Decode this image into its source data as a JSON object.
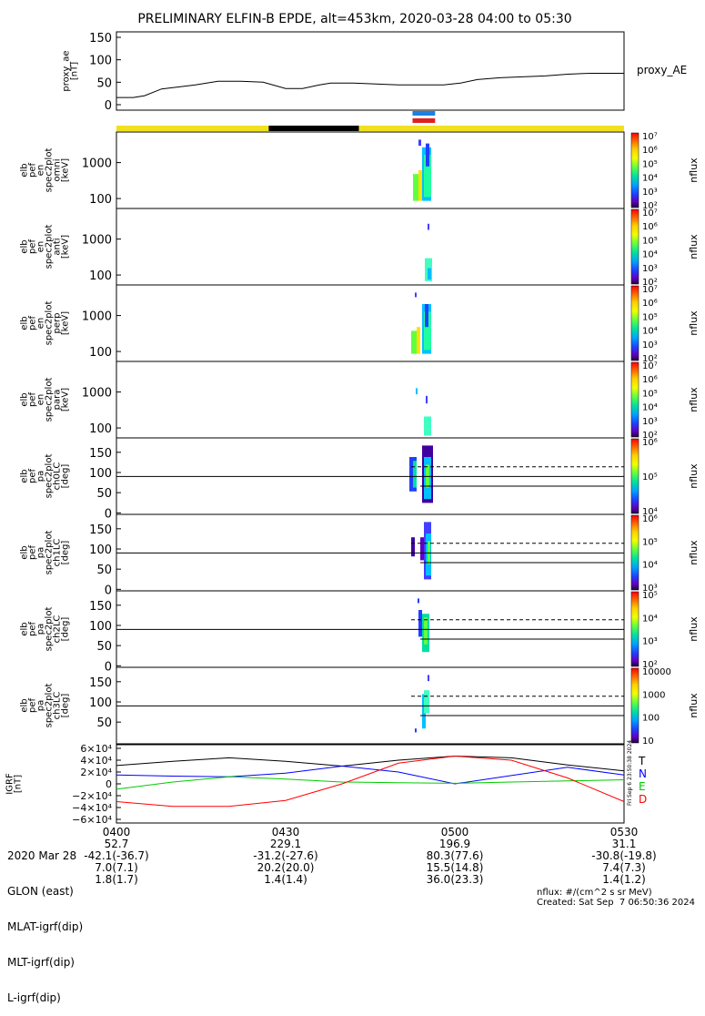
{
  "title": "PRELIMINARY ELFIN-B EPDE, alt=453km, 2020-03-28 04:00 to 05:30",
  "proxy_panel": {
    "ylabel_lines": [
      "proxy_ae",
      "[nT]"
    ],
    "yticks": [
      "0",
      "50",
      "100",
      "150"
    ],
    "legend": "proxy_AE"
  },
  "spectro_panels": [
    {
      "ylabel_lines": [
        "elb",
        "pef",
        "en",
        "spec2plot",
        "omni",
        "[keV]"
      ],
      "yticks": [
        "100",
        "1000"
      ],
      "cbar_label": "nflux",
      "cbar_ticks": [
        "10²",
        "10³",
        "10⁴",
        "10⁵",
        "10⁶",
        "10⁷"
      ]
    },
    {
      "ylabel_lines": [
        "elb",
        "pef",
        "en",
        "spec2plot",
        "anti",
        "[keV]"
      ],
      "yticks": [
        "100",
        "1000"
      ],
      "cbar_label": "nflux",
      "cbar_ticks": [
        "10²",
        "10³",
        "10⁴",
        "10⁵",
        "10⁶",
        "10⁷"
      ]
    },
    {
      "ylabel_lines": [
        "elb",
        "pef",
        "en",
        "spec2plot",
        "perp",
        "[keV]"
      ],
      "yticks": [
        "100",
        "1000"
      ],
      "cbar_label": "nflux",
      "cbar_ticks": [
        "10²",
        "10³",
        "10⁴",
        "10⁵",
        "10⁶",
        "10⁷"
      ]
    },
    {
      "ylabel_lines": [
        "elb",
        "pef",
        "en",
        "spec2plot",
        "para",
        "[keV]"
      ],
      "yticks": [
        "100",
        "1000"
      ],
      "cbar_label": "nflux",
      "cbar_ticks": [
        "10²",
        "10³",
        "10⁴",
        "10⁵",
        "10⁶",
        "10⁷"
      ]
    },
    {
      "ylabel_lines": [
        "elb",
        "pef",
        "pa",
        "spec2plot",
        "ch0LC",
        "[deg]"
      ],
      "yticks": [
        "0",
        "50",
        "100",
        "150"
      ],
      "cbar_label": "nflux",
      "cbar_ticks": [
        "10⁴",
        "10⁵",
        "10⁶"
      ]
    },
    {
      "ylabel_lines": [
        "elb",
        "pef",
        "pa",
        "spec2plot",
        "ch1LC",
        "[deg]"
      ],
      "yticks": [
        "0",
        "50",
        "100",
        "150"
      ],
      "cbar_label": "nflux",
      "cbar_ticks": [
        "10³",
        "10⁴",
        "10⁵",
        "10⁶"
      ]
    },
    {
      "ylabel_lines": [
        "elb",
        "pef",
        "pa",
        "spec2plot",
        "ch2LC",
        "[deg]"
      ],
      "yticks": [
        "0",
        "50",
        "100",
        "150"
      ],
      "cbar_label": "nflux",
      "cbar_ticks": [
        "10²",
        "10³",
        "10⁴",
        "10⁵"
      ]
    },
    {
      "ylabel_lines": [
        "elb",
        "pef",
        "pa",
        "spec2plot",
        "ch3LC",
        "[deg]"
      ],
      "yticks": [
        "50",
        "100",
        "150"
      ],
      "cbar_label": "nflux",
      "cbar_ticks": [
        "10",
        "100",
        "1000",
        "10000"
      ]
    }
  ],
  "igrf_panel": {
    "ylabel_lines": [
      "IGRF",
      "[nT]"
    ],
    "yticks": [
      "−6×10⁴",
      "−4×10⁴",
      "−2×10⁴",
      "0",
      "2×10⁴",
      "4×10⁴",
      "6×10⁴"
    ],
    "legend": [
      "T",
      "N",
      "E",
      "D"
    ],
    "legend_colors": [
      "#000000",
      "#0000ff",
      "#00cc00",
      "#ff0000"
    ]
  },
  "side_stamp": "Fri Sep  6 23:50:38 2024",
  "footer": {
    "row_labels": [
      "2020 Mar 28",
      "GLON (east)",
      "MLAT-igrf(dip)",
      "MLT-igrf(dip)",
      "L-igrf(dip)"
    ],
    "columns": [
      {
        "values": [
          "0400",
          "52.7",
          "-42.1(-36.7)",
          "7.0(7.1)",
          "1.8(1.7)"
        ]
      },
      {
        "values": [
          "0430",
          "229.1",
          "-31.2(-27.6)",
          "20.2(20.0)",
          "1.4(1.4)"
        ]
      },
      {
        "values": [
          "0500",
          "196.9",
          "80.3(77.6)",
          "15.5(14.8)",
          "36.0(23.3)"
        ]
      },
      {
        "values": [
          "0530",
          "31.1",
          "-30.8(-19.8)",
          "7.4(7.3)",
          "1.4(1.2)"
        ]
      }
    ],
    "units_note": "nflux: #/(cm^2 s sr MeV)",
    "created": "Created: Sat Sep  7 06:50:36 2024"
  },
  "chart_data": {
    "type": "line",
    "x_range_minutes_after_0400": [
      0,
      90
    ],
    "proxy_ae": {
      "x": [
        0,
        3,
        5,
        8,
        10,
        14,
        18,
        22,
        26,
        30,
        33,
        36,
        38,
        42,
        46,
        50,
        54,
        58,
        61,
        64,
        68,
        72,
        76,
        80,
        84,
        88,
        90
      ],
      "y": [
        16,
        16,
        20,
        35,
        38,
        44,
        52,
        52,
        50,
        36,
        36,
        44,
        48,
        48,
        46,
        44,
        44,
        44,
        48,
        56,
        60,
        62,
        64,
        68,
        70,
        70,
        70
      ],
      "ylim": [
        0,
        150
      ]
    },
    "igrf": {
      "x": [
        0,
        10,
        20,
        30,
        40,
        50,
        60,
        70,
        80,
        90
      ],
      "series": [
        {
          "name": "T",
          "values": [
            31000,
            38000,
            44000,
            38000,
            30000,
            40000,
            47000,
            44000,
            32000,
            22000
          ]
        },
        {
          "name": "N",
          "values": [
            15000,
            13000,
            12000,
            18000,
            30000,
            20000,
            0,
            14000,
            28000,
            15000
          ]
        },
        {
          "name": "E",
          "values": [
            -9000,
            3000,
            12000,
            8000,
            3000,
            2000,
            1000,
            3000,
            5000,
            7000
          ]
        },
        {
          "name": "D",
          "values": [
            -30000,
            -38000,
            -38000,
            -28000,
            0,
            35000,
            47000,
            40000,
            10000,
            -30000
          ]
        }
      ],
      "ylim": [
        -60000,
        60000
      ]
    },
    "status_bars": {
      "yellow_black": [
        {
          "color": "#f0e020",
          "start": 0,
          "end": 27
        },
        {
          "color": "#000000",
          "start": 27,
          "end": 43
        },
        {
          "color": "#f0e020",
          "start": 43,
          "end": 90
        }
      ],
      "markers": [
        {
          "color": "#1e7fe0",
          "start": 52.5,
          "end": 56.5
        },
        {
          "color": "#e02020",
          "start": 52.5,
          "end": 56.5
        }
      ]
    }
  }
}
